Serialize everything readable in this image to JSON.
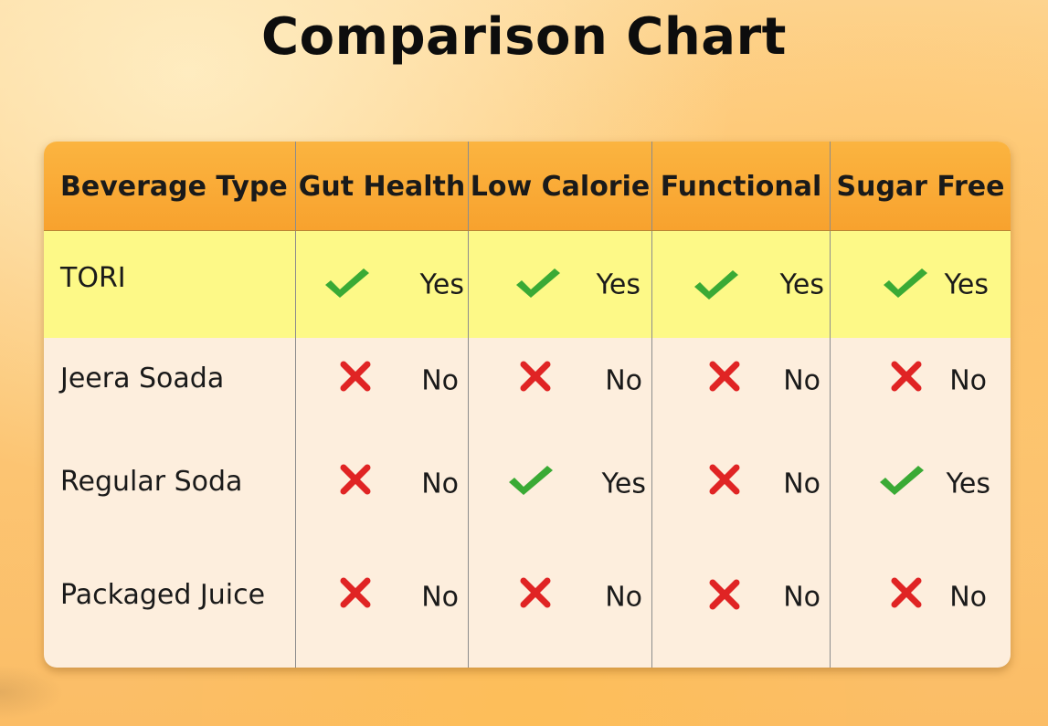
{
  "title": "Comparison Chart",
  "colors": {
    "header_orange": "#f8a22e",
    "highlight_yellow": "#fdf987",
    "body_cream": "#fdeedd",
    "check_green": "#3aaa35",
    "cross_red": "#e02424"
  },
  "chart_data": {
    "type": "table",
    "columns": [
      "Beverage Type",
      "Gut Health",
      "Low Calorie",
      "Functional",
      "Sugar Free"
    ],
    "rows": [
      {
        "name": "TORI",
        "highlight": true,
        "values": [
          "Yes",
          "Yes",
          "Yes",
          "Yes"
        ],
        "icons": [
          "check-icon",
          "check-icon",
          "check-icon",
          "check-icon"
        ]
      },
      {
        "name": "Jeera Soada",
        "highlight": false,
        "values": [
          "No",
          "No",
          "No",
          "No"
        ],
        "icons": [
          "cross-icon",
          "cross-icon",
          "cross-icon",
          "cross-icon"
        ]
      },
      {
        "name": "Regular Soda",
        "highlight": false,
        "values": [
          "No",
          "Yes",
          "No",
          "Yes"
        ],
        "icons": [
          "cross-icon",
          "check-icon",
          "cross-icon",
          "check-icon"
        ]
      },
      {
        "name": "Packaged Juice",
        "highlight": false,
        "values": [
          "No",
          "No",
          "No",
          "No"
        ],
        "icons": [
          "cross-icon",
          "cross-icon",
          "cross-icon",
          "cross-icon"
        ]
      }
    ]
  }
}
